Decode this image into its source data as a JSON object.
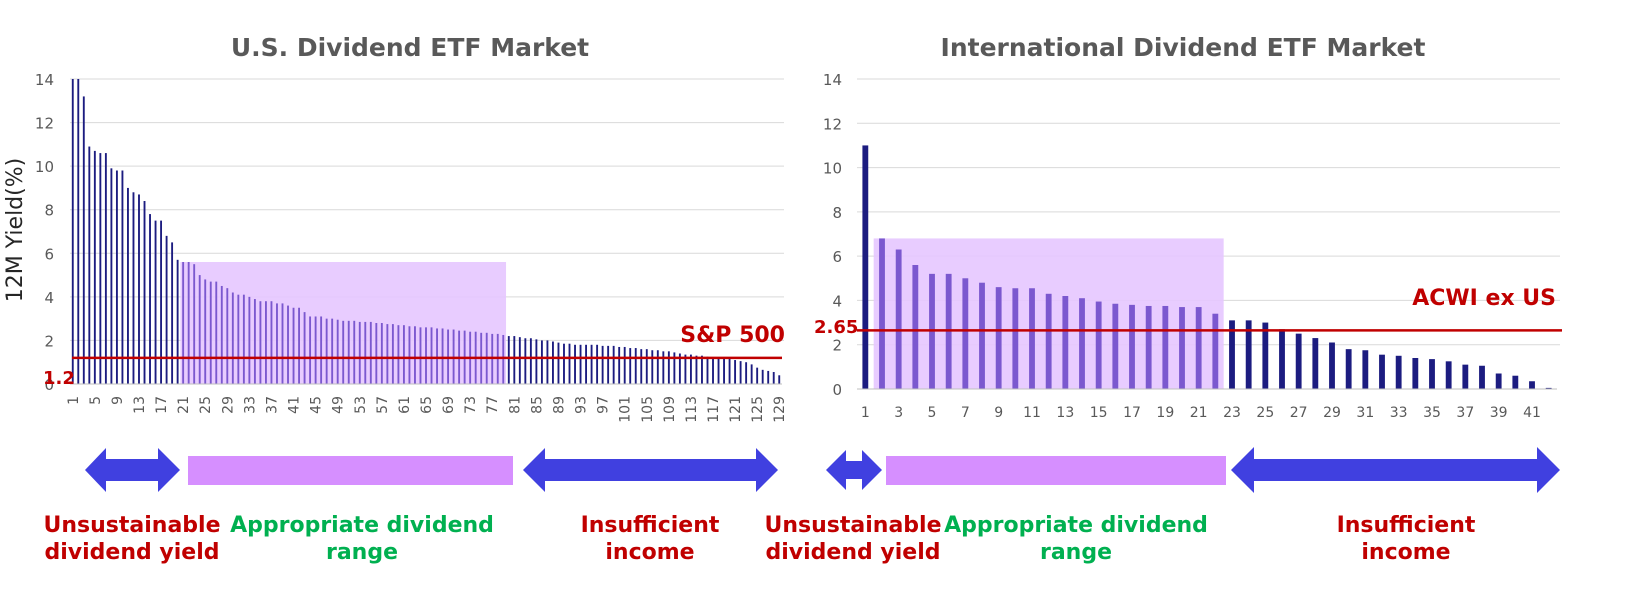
{
  "colors": {
    "bar": "#1c1c80",
    "bar_overlay": "#7b58cf",
    "band": "#e5c6ff",
    "arrow_blue": "#4040e0",
    "arrow_purple": "#d68fff",
    "ref_line": "#c00000",
    "label_red": "#c00000",
    "label_green": "#00b050",
    "grid": "#d9d9d9"
  },
  "chart_data": [
    {
      "type": "bar",
      "title": "U.S. Dividend ETF Market",
      "ylabel": "12M Yield(%)",
      "xlabel": "",
      "ylim": [
        0,
        14
      ],
      "yticks": [
        0,
        2,
        4,
        6,
        8,
        10,
        12,
        14
      ],
      "grid": true,
      "x_tick_labels": [
        "1",
        "5",
        "9",
        "13",
        "17",
        "21",
        "25",
        "29",
        "33",
        "37",
        "41",
        "45",
        "49",
        "53",
        "57",
        "61",
        "65",
        "69",
        "73",
        "77",
        "81",
        "85",
        "89",
        "93",
        "97",
        "101",
        "105",
        "109",
        "113",
        "117",
        "121",
        "125",
        "129"
      ],
      "categories_count": 129,
      "values": [
        14.0,
        14.0,
        13.2,
        10.9,
        10.7,
        10.6,
        10.6,
        9.9,
        9.8,
        9.8,
        9.0,
        8.8,
        8.7,
        8.4,
        7.8,
        7.5,
        7.5,
        6.8,
        6.5,
        5.7,
        5.6,
        5.6,
        5.5,
        5.0,
        4.8,
        4.7,
        4.7,
        4.5,
        4.4,
        4.2,
        4.1,
        4.1,
        4.0,
        3.9,
        3.8,
        3.8,
        3.8,
        3.7,
        3.7,
        3.6,
        3.5,
        3.5,
        3.3,
        3.1,
        3.1,
        3.1,
        3.0,
        3.0,
        2.95,
        2.9,
        2.9,
        2.9,
        2.85,
        2.85,
        2.85,
        2.8,
        2.8,
        2.75,
        2.75,
        2.7,
        2.7,
        2.65,
        2.65,
        2.6,
        2.6,
        2.6,
        2.55,
        2.55,
        2.5,
        2.5,
        2.45,
        2.45,
        2.4,
        2.4,
        2.35,
        2.35,
        2.3,
        2.3,
        2.25,
        2.2,
        2.2,
        2.15,
        2.1,
        2.1,
        2.05,
        2.0,
        2.0,
        1.95,
        1.9,
        1.85,
        1.85,
        1.8,
        1.8,
        1.8,
        1.8,
        1.8,
        1.75,
        1.75,
        1.75,
        1.7,
        1.7,
        1.65,
        1.65,
        1.6,
        1.6,
        1.55,
        1.55,
        1.5,
        1.5,
        1.45,
        1.4,
        1.35,
        1.35,
        1.3,
        1.3,
        1.25,
        1.2,
        1.2,
        1.15,
        1.15,
        1.1,
        1.05,
        1.0,
        0.9,
        0.75,
        0.65,
        0.6,
        0.55,
        0.4
      ],
      "reference_line": {
        "value": 1.2,
        "value_label": "1.2",
        "name": "S&P 500"
      },
      "highlight_range": {
        "from": 21,
        "to": 79,
        "y_top": 5.6
      },
      "zones": [
        {
          "label": "Unsustainable dividend yield",
          "color": "red"
        },
        {
          "label": "Appropriate dividend range",
          "color": "green"
        },
        {
          "label": "Insufficient income",
          "color": "red"
        }
      ]
    },
    {
      "type": "bar",
      "title": "International Dividend ETF Market",
      "ylabel": "",
      "xlabel": "",
      "ylim": [
        0,
        14
      ],
      "yticks": [
        0,
        2,
        4,
        6,
        8,
        10,
        12,
        14
      ],
      "grid": true,
      "x_tick_labels": [
        "1",
        "3",
        "5",
        "7",
        "9",
        "11",
        "13",
        "15",
        "17",
        "19",
        "21",
        "23",
        "25",
        "27",
        "29",
        "31",
        "33",
        "35",
        "37",
        "39",
        "41"
      ],
      "categories_count": 42,
      "values": [
        11.0,
        6.8,
        6.3,
        5.6,
        5.2,
        5.2,
        5.0,
        4.8,
        4.6,
        4.55,
        4.55,
        4.3,
        4.2,
        4.1,
        3.95,
        3.85,
        3.8,
        3.75,
        3.75,
        3.7,
        3.7,
        3.4,
        3.1,
        3.1,
        3.0,
        2.7,
        2.5,
        2.3,
        2.1,
        1.8,
        1.75,
        1.55,
        1.5,
        1.4,
        1.35,
        1.25,
        1.1,
        1.05,
        0.7,
        0.6,
        0.35,
        0.05
      ],
      "reference_line": {
        "value": 2.65,
        "value_label": "2.65",
        "name": "ACWI ex US"
      },
      "highlight_range": {
        "from": 2,
        "to": 22,
        "y_top": 6.8
      },
      "zones": [
        {
          "label": "Unsustainable dividend yield",
          "color": "red"
        },
        {
          "label": "Appropriate dividend range",
          "color": "green"
        },
        {
          "label": "Insufficient income",
          "color": "red"
        }
      ]
    }
  ],
  "left": {
    "title": "U.S. Dividend ETF Market",
    "ylabel": "12M Yield(%)",
    "ref_value_label": "1.2",
    "ref_name": "S&P 500",
    "zone1_line1": "Unsustainable",
    "zone1_line2": "dividend yield",
    "zone2_line1": "Appropriate dividend",
    "zone2_line2": "range",
    "zone3_line1": "Insufficient",
    "zone3_line2": "income"
  },
  "right": {
    "title": "International Dividend ETF Market",
    "ref_value_label": "2.65",
    "ref_name": "ACWI ex US",
    "zone1_line1": "Unsustainable",
    "zone1_line2": "dividend yield",
    "zone2_line1": "Appropriate dividend",
    "zone2_line2": "range",
    "zone3_line1": "Insufficient",
    "zone3_line2": "income"
  }
}
